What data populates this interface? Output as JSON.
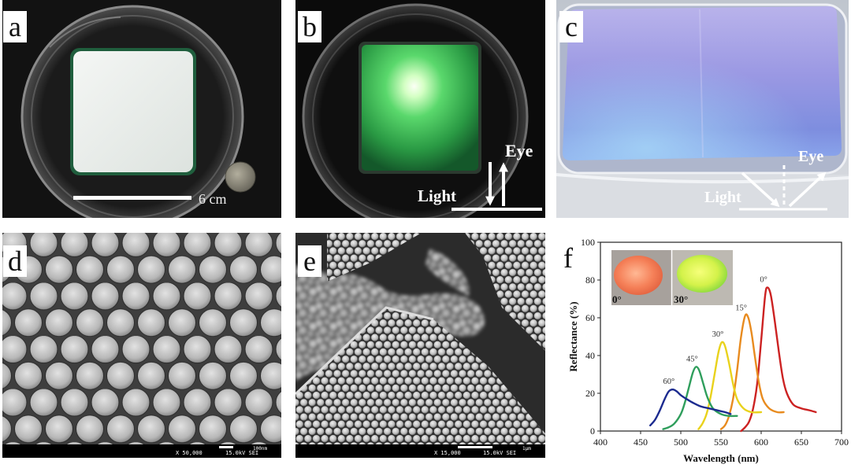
{
  "panels": {
    "a": {
      "letter": "a",
      "scale_label": "6 cm"
    },
    "b": {
      "letter": "b",
      "eye_label": "Eye",
      "light_label": "Light"
    },
    "c": {
      "letter": "c",
      "eye_label": "Eye",
      "light_label": "Light"
    },
    "d": {
      "letter": "d",
      "magnification": "X 50,000",
      "beam": "15.0kV SEI",
      "scale_label": "100nm"
    },
    "e": {
      "letter": "e",
      "magnification": "X 15,000",
      "beam": "15.0kV SEI",
      "scale_label": "1μm"
    },
    "f": {
      "letter": "f",
      "inset_labels": [
        "0°",
        "30°"
      ]
    }
  },
  "colors": {
    "film_glow_green": "#4fd464",
    "film_blue_violet": "#8c90e0",
    "inset_sample_orange": "#f47a52",
    "inset_sample_yellow_green": "#d9f24a"
  },
  "chart_data": {
    "type": "line",
    "title": "",
    "xlabel": "Wavelength (nm)",
    "ylabel": "Reflectance (%)",
    "xlim": [
      400,
      700
    ],
    "ylim": [
      0,
      100
    ],
    "xticks": [
      400,
      450,
      500,
      550,
      600,
      650,
      700
    ],
    "yticks": [
      0,
      20,
      40,
      60,
      80,
      100
    ],
    "grid": false,
    "legend": "none (curves labeled directly at peaks)",
    "series": [
      {
        "name": "0°",
        "color": "#cc2222",
        "x": [
          575,
          580,
          585,
          590,
          595,
          600,
          605,
          608,
          612,
          617,
          622,
          627,
          632,
          640,
          650,
          660,
          668
        ],
        "y": [
          0,
          2,
          5,
          12,
          25,
          48,
          72,
          76,
          72,
          58,
          42,
          28,
          20,
          14,
          12,
          11,
          10
        ]
      },
      {
        "name": "15°",
        "color": "#e88b1f",
        "x": [
          550,
          555,
          560,
          565,
          570,
          575,
          580,
          584,
          588,
          592,
          597,
          602,
          610,
          620,
          628
        ],
        "y": [
          1,
          3,
          8,
          17,
          32,
          50,
          61,
          60,
          52,
          40,
          26,
          17,
          12,
          10,
          10
        ]
      },
      {
        "name": "30°",
        "color": "#e9d21c",
        "x": [
          522,
          527,
          532,
          537,
          542,
          547,
          551,
          555,
          560,
          565,
          570,
          578,
          588,
          600
        ],
        "y": [
          1,
          4,
          9,
          18,
          30,
          42,
          47,
          45,
          36,
          25,
          17,
          12,
          10,
          10
        ]
      },
      {
        "name": "45°",
        "color": "#2f9e5c",
        "x": [
          478,
          485,
          492,
          500,
          505,
          510,
          515,
          519,
          523,
          528,
          533,
          540,
          550,
          560,
          570
        ],
        "y": [
          1,
          2,
          4,
          9,
          15,
          23,
          31,
          34,
          32,
          25,
          18,
          12,
          9,
          8,
          8
        ]
      },
      {
        "name": "60°",
        "color": "#1b2a8f",
        "x": [
          462,
          468,
          474,
          480,
          485,
          490,
          495,
          500,
          507,
          515,
          525,
          535,
          545,
          555,
          562
        ],
        "y": [
          3,
          6,
          11,
          17,
          21,
          22,
          21,
          19,
          17,
          15,
          13,
          12,
          11,
          10,
          9
        ]
      }
    ]
  }
}
